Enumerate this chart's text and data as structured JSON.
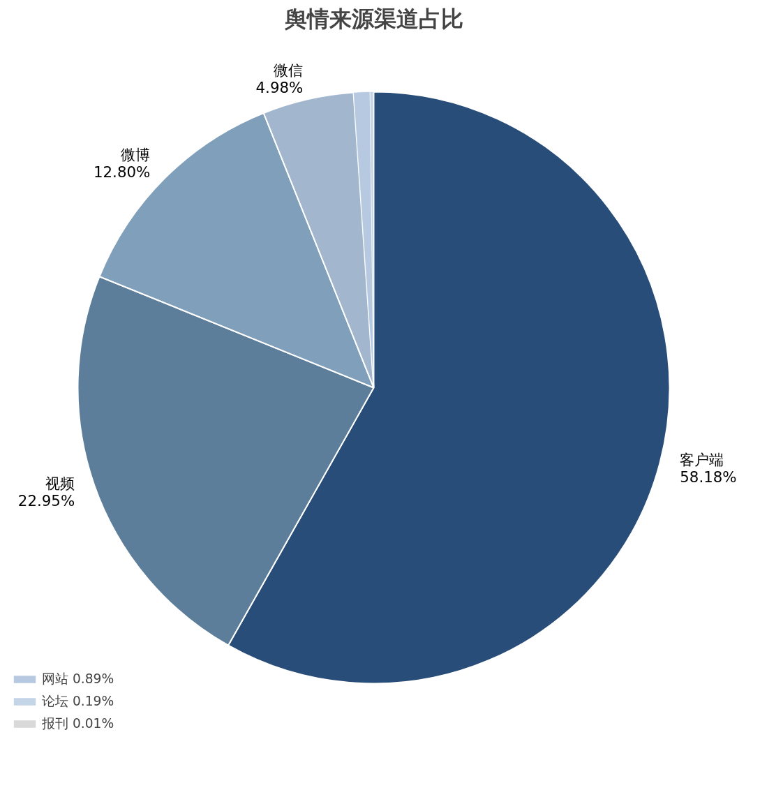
{
  "chart_data": {
    "type": "pie",
    "title": "舆情来源渠道占比",
    "categories": [
      "客户端",
      "视频",
      "微博",
      "微信",
      "网站",
      "论坛",
      "报刊"
    ],
    "values": [
      58.18,
      22.95,
      12.8,
      4.98,
      0.89,
      0.19,
      0.01
    ],
    "colors": [
      "#284d78",
      "#5d7e9a",
      "#809fba",
      "#a2b7ce",
      "#b6c9e0",
      "#c5d5e8",
      "#d9d9d9"
    ],
    "value_labels": [
      "58.18%",
      "22.95%",
      "12.80%",
      "4.98%",
      "0.89%",
      "0.19%",
      "0.01%"
    ],
    "legend": "bottom left"
  }
}
